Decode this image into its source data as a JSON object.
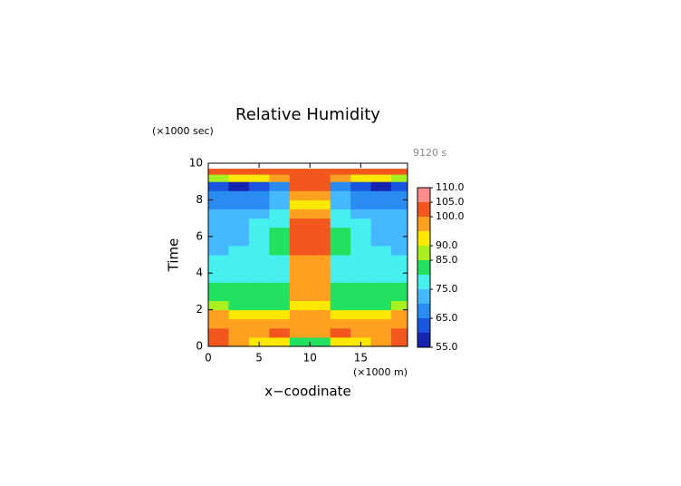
{
  "chart_data": {
    "type": "contour",
    "title": "Relative Humidity",
    "y_unit": "(×1000 sec)",
    "time_label": "9120 s",
    "ylabel": "Time",
    "xlabel": "x−coodinate",
    "x_unit": "(×1000 m)",
    "xlim": [
      0,
      19.6
    ],
    "xticks": [
      0,
      5,
      10,
      15
    ],
    "ylim": [
      0,
      10
    ],
    "yticks": [
      0,
      2,
      4,
      6,
      8,
      10
    ],
    "x": [
      1,
      3,
      5,
      7,
      9,
      11,
      13,
      15,
      17,
      19
    ],
    "y": [
      0.25,
      0.75,
      1.25,
      1.75,
      2.25,
      2.75,
      3.25,
      3.75,
      4.25,
      4.75,
      5.25,
      5.75,
      6.25,
      6.75,
      7.25,
      7.75,
      8.25,
      8.75,
      9.25,
      9.55
    ],
    "z": [
      [
        101,
        97,
        94,
        90,
        84,
        84,
        90,
        94,
        97,
        101
      ],
      [
        102,
        97,
        98,
        101,
        97,
        97,
        101,
        98,
        97,
        102
      ],
      [
        98,
        97,
        96,
        96,
        98,
        98,
        96,
        96,
        97,
        98
      ],
      [
        96,
        94,
        92,
        93,
        97,
        97,
        93,
        92,
        94,
        96
      ],
      [
        86,
        83,
        82,
        84,
        93,
        93,
        84,
        82,
        83,
        86
      ],
      [
        82,
        82,
        81,
        82,
        97,
        97,
        82,
        81,
        82,
        82
      ],
      [
        81,
        81,
        80,
        81,
        96,
        96,
        81,
        80,
        81,
        81
      ],
      [
        78,
        78,
        78,
        79,
        97,
        97,
        79,
        78,
        78,
        78
      ],
      [
        76,
        77,
        77,
        78,
        96,
        96,
        78,
        77,
        77,
        76
      ],
      [
        76,
        77,
        77,
        78,
        97,
        97,
        78,
        77,
        77,
        76
      ],
      [
        74,
        76,
        77,
        80,
        101,
        101,
        80,
        77,
        76,
        74
      ],
      [
        72,
        74,
        77,
        80,
        102,
        102,
        80,
        77,
        74,
        72
      ],
      [
        72,
        74,
        76,
        80,
        102,
        102,
        80,
        76,
        74,
        72
      ],
      [
        73,
        74,
        75,
        78,
        101,
        101,
        78,
        75,
        74,
        73
      ],
      [
        70,
        71,
        72,
        76,
        98,
        98,
        76,
        72,
        71,
        70
      ],
      [
        68,
        67,
        68,
        71,
        93,
        93,
        71,
        68,
        67,
        68
      ],
      [
        66,
        65,
        66,
        70,
        97,
        97,
        70,
        66,
        65,
        66
      ],
      [
        61,
        59,
        60,
        66,
        101,
        101,
        66,
        60,
        59,
        61
      ],
      [
        86,
        92,
        92,
        96,
        101,
        101,
        96,
        92,
        92,
        86
      ],
      [
        102,
        102,
        102,
        102,
        102,
        102,
        102,
        102,
        102,
        102
      ]
    ],
    "levels": [
      55,
      60,
      65,
      70,
      75,
      80,
      85,
      90,
      95,
      100,
      105,
      110
    ],
    "colors": [
      "#1525b0",
      "#1a55e0",
      "#2a8cf0",
      "#45b8ff",
      "#45f0ee",
      "#22e060",
      "#a8f020",
      "#ffe800",
      "#ffa020",
      "#f2581e",
      "#ff8c8c"
    ],
    "colorbar_ticks": [
      {
        "value": 110,
        "label": "110.0"
      },
      {
        "value": 105,
        "label": "105.0"
      },
      {
        "value": 100,
        "label": "100.0"
      },
      {
        "value": 90,
        "label": "90.0"
      },
      {
        "value": 85,
        "label": "85.0"
      },
      {
        "value": 75,
        "label": "75.0"
      },
      {
        "value": 65,
        "label": "65.0"
      },
      {
        "value": 55,
        "label": "55.0"
      }
    ]
  }
}
